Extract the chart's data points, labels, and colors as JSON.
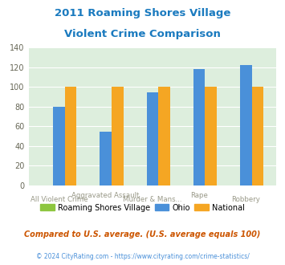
{
  "title_line1": "2011 Roaming Shores Village",
  "title_line2": "Violent Crime Comparison",
  "categories": [
    "All Violent Crime",
    "Aggravated Assault",
    "Murder & Mans...",
    "Rape",
    "Robbery"
  ],
  "cat_row": [
    1,
    0,
    1,
    0,
    1
  ],
  "series": {
    "Roaming Shores Village": [
      0,
      0,
      0,
      0,
      0
    ],
    "Ohio": [
      80,
      55,
      95,
      118,
      122
    ],
    "National": [
      100,
      100,
      100,
      100,
      100
    ]
  },
  "colors": {
    "Roaming Shores Village": "#8dc63f",
    "Ohio": "#4a90d9",
    "National": "#f5a623"
  },
  "ylim": [
    0,
    140
  ],
  "yticks": [
    0,
    20,
    40,
    60,
    80,
    100,
    120,
    140
  ],
  "title_color": "#1a7abf",
  "xticklabel_color": "#999988",
  "footnote1": "Compared to U.S. average. (U.S. average equals 100)",
  "footnote2": "© 2024 CityRating.com - https://www.cityrating.com/crime-statistics/",
  "footnote1_color": "#cc5500",
  "footnote2_color": "#4a90d9",
  "fig_bg_color": "#ffffff",
  "plot_bg_color": "#ddeedd"
}
